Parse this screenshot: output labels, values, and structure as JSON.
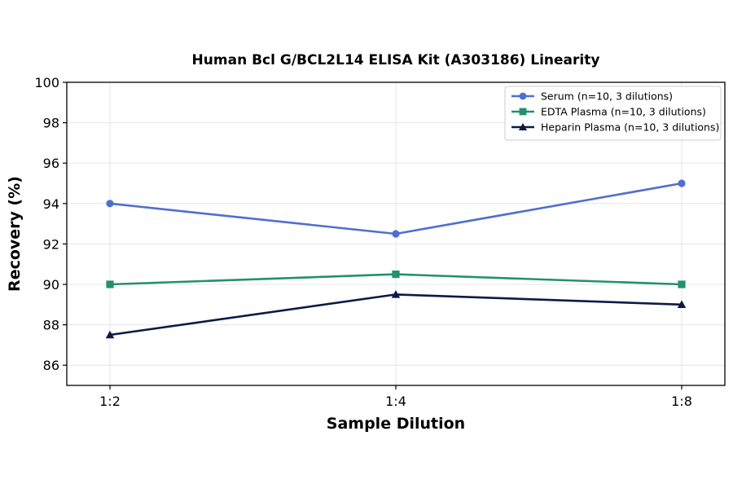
{
  "chart_data": {
    "type": "line",
    "title": "Human Bcl G/BCL2L14 ELISA Kit (A303186) Linearity",
    "xlabel": "Sample Dilution",
    "ylabel": "Recovery (%)",
    "categories": [
      "1:2",
      "1:4",
      "1:8"
    ],
    "ylim": [
      85,
      100
    ],
    "yticks": [
      86,
      88,
      90,
      92,
      94,
      96,
      98,
      100
    ],
    "grid": true,
    "legend_position": "top-right",
    "series": [
      {
        "name": "Serum (n=10, 3 dilutions)",
        "values": [
          94,
          92.5,
          95
        ],
        "color": "#4f6fd0",
        "marker": "circle"
      },
      {
        "name": "EDTA Plasma (n=10, 3 dilutions)",
        "values": [
          90,
          90.5,
          90
        ],
        "color": "#23906f",
        "marker": "square"
      },
      {
        "name": "Heparin Plasma (n=10, 3 dilutions)",
        "values": [
          87.5,
          89.5,
          89
        ],
        "color": "#0d1a45",
        "marker": "triangle"
      }
    ]
  }
}
